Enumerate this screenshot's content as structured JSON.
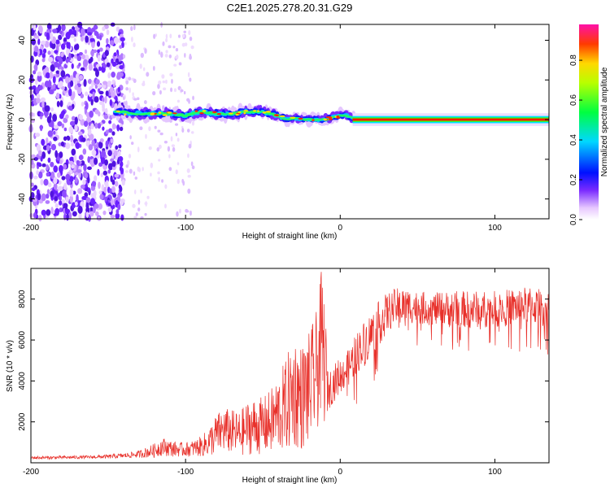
{
  "chart_data": [
    {
      "type": "heatmap",
      "title": "C2E1.2025.278.20.31.G29",
      "xlabel": "Height of straight line (km)",
      "ylabel": "Frequency (Hz)",
      "xlim": [
        -200,
        135
      ],
      "ylim": [
        -50,
        48
      ],
      "xticks": [
        -200,
        -100,
        0,
        100
      ],
      "xtick_labels": [
        "-200",
        "-100",
        "0",
        "100"
      ],
      "yticks": [
        -40,
        -20,
        0,
        20,
        40
      ],
      "ytick_labels": [
        "-40",
        "-20",
        "0",
        "20",
        "40"
      ],
      "colorbar": {
        "label": "Normalized spectral amplitude",
        "range": [
          0,
          0.98
        ],
        "ticks": [
          0.0,
          0.2,
          0.4,
          0.6,
          0.8
        ],
        "tick_labels": [
          "0.0",
          "0.2",
          "0.4",
          "0.6",
          "0.8"
        ]
      },
      "ridge": {
        "x": [
          -145,
          -130,
          -110,
          -100,
          -90,
          -80,
          -70,
          -60,
          -50,
          -40,
          -35,
          -30,
          -25,
          -20,
          -10,
          0,
          5,
          10,
          20,
          40,
          60,
          80,
          100,
          120,
          135
        ],
        "y": [
          4,
          3,
          3,
          2,
          4,
          3,
          3,
          4,
          4,
          2,
          0,
          1,
          0,
          0,
          0,
          2,
          2,
          0,
          0,
          0,
          0,
          0,
          0,
          0,
          0
        ]
      },
      "noise_region": {
        "x": [
          -200,
          -140
        ],
        "y": [
          -50,
          48
        ]
      }
    },
    {
      "type": "line",
      "xlabel": "Height of straight line (km)",
      "ylabel": "SNR (10 * v/v)",
      "xlim": [
        -200,
        135
      ],
      "ylim": [
        0,
        9500
      ],
      "xticks": [
        -200,
        -100,
        0,
        100
      ],
      "xtick_labels": [
        "-200",
        "-100",
        "0",
        "100"
      ],
      "yticks": [
        2000,
        4000,
        6000,
        8000
      ],
      "ytick_labels": [
        "2000",
        "4000",
        "6000",
        "8000"
      ],
      "color": "#e8302a",
      "x": [
        -200,
        -190,
        -180,
        -170,
        -160,
        -150,
        -140,
        -130,
        -120,
        -115,
        -110,
        -105,
        -100,
        -95,
        -90,
        -85,
        -80,
        -75,
        -70,
        -65,
        -60,
        -55,
        -50,
        -45,
        -40,
        -35,
        -30,
        -25,
        -20,
        -15,
        -12,
        -10,
        -8,
        -5,
        0,
        5,
        10,
        15,
        20,
        25,
        30,
        35,
        40,
        50,
        60,
        70,
        80,
        90,
        100,
        110,
        120,
        130,
        135
      ],
      "values": [
        250,
        250,
        260,
        270,
        280,
        300,
        350,
        420,
        600,
        800,
        700,
        650,
        650,
        700,
        800,
        1000,
        1400,
        1600,
        1500,
        1400,
        1700,
        1800,
        1800,
        2000,
        2400,
        2800,
        3500,
        3200,
        3600,
        4500,
        6000,
        5000,
        3500,
        3800,
        4300,
        4600,
        5300,
        5800,
        6300,
        6800,
        7300,
        7600,
        7700,
        7600,
        7500,
        7500,
        7500,
        7500,
        7500,
        7600,
        7700,
        7600,
        7500
      ],
      "spread": [
        80,
        80,
        80,
        80,
        80,
        100,
        120,
        180,
        350,
        450,
        400,
        350,
        350,
        400,
        500,
        700,
        1000,
        1100,
        1100,
        1100,
        1300,
        1400,
        1400,
        1600,
        1900,
        2300,
        2800,
        2600,
        2800,
        3000,
        3500,
        3200,
        1000,
        900,
        900,
        900,
        1000,
        1100,
        1100,
        1100,
        1000,
        900,
        900,
        800,
        800,
        900,
        900,
        900,
        900,
        900,
        900,
        900,
        900
      ]
    }
  ]
}
